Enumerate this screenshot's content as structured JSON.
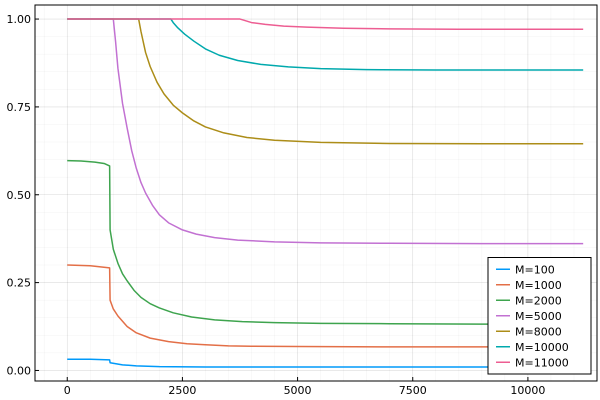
{
  "chart_data": {
    "type": "line",
    "title": "",
    "xlabel": "",
    "ylabel": "",
    "xlim": [
      -700,
      11500
    ],
    "ylim": [
      -0.03,
      1.04
    ],
    "grid": true,
    "legend_position": "bottom-right",
    "x_ticks": [
      0,
      2500,
      5000,
      7500,
      10000
    ],
    "x_tick_labels": [
      "0",
      "2500",
      "5000",
      "7500",
      "10000"
    ],
    "y_ticks": [
      0,
      0.25,
      0.5,
      0.75,
      1.0
    ],
    "y_tick_labels": [
      "0.00",
      "0.25",
      "0.50",
      "0.75",
      "1.00"
    ],
    "series": [
      {
        "name": "M=100",
        "color": "#009AFA",
        "x": [
          0,
          500,
          920,
          930,
          1200,
          1500,
          2000,
          3000,
          5000,
          8000,
          11200
        ],
        "y": [
          0.032,
          0.032,
          0.03,
          0.022,
          0.016,
          0.013,
          0.011,
          0.01,
          0.01,
          0.01,
          0.01
        ]
      },
      {
        "name": "M=1000",
        "color": "#E36F47",
        "x": [
          0,
          500,
          920,
          930,
          1000,
          1100,
          1300,
          1500,
          1800,
          2200,
          2600,
          3000,
          3500,
          4000,
          5000,
          7000,
          11200
        ],
        "y": [
          0.3,
          0.298,
          0.292,
          0.2,
          0.175,
          0.155,
          0.125,
          0.107,
          0.092,
          0.082,
          0.076,
          0.073,
          0.07,
          0.069,
          0.068,
          0.067,
          0.067
        ]
      },
      {
        "name": "M=2000",
        "color": "#3EA44E",
        "x": [
          0,
          300,
          600,
          800,
          920,
          930,
          1000,
          1100,
          1200,
          1300,
          1450,
          1600,
          1800,
          2000,
          2300,
          2700,
          3200,
          3800,
          4500,
          5500,
          7000,
          9000,
          11200
        ],
        "y": [
          0.597,
          0.596,
          0.593,
          0.589,
          0.582,
          0.4,
          0.345,
          0.305,
          0.275,
          0.255,
          0.228,
          0.208,
          0.19,
          0.178,
          0.164,
          0.152,
          0.144,
          0.139,
          0.136,
          0.134,
          0.133,
          0.132,
          0.132
        ]
      },
      {
        "name": "M=5000",
        "color": "#C271D2",
        "x": [
          0,
          1000,
          1050,
          1100,
          1200,
          1300,
          1400,
          1500,
          1600,
          1700,
          1850,
          2000,
          2200,
          2500,
          2800,
          3200,
          3700,
          4500,
          5500,
          7000,
          9000,
          11200
        ],
        "y": [
          1.0,
          1.0,
          0.935,
          0.86,
          0.76,
          0.69,
          0.625,
          0.575,
          0.535,
          0.505,
          0.47,
          0.443,
          0.42,
          0.4,
          0.388,
          0.378,
          0.371,
          0.366,
          0.363,
          0.362,
          0.361,
          0.361
        ]
      },
      {
        "name": "M=8000",
        "color": "#AC8D18",
        "x": [
          0,
          1550,
          1600,
          1700,
          1800,
          1950,
          2100,
          2300,
          2500,
          2750,
          3000,
          3400,
          3900,
          4500,
          5500,
          7000,
          9000,
          11200
        ],
        "y": [
          1.0,
          1.0,
          0.965,
          0.905,
          0.865,
          0.82,
          0.787,
          0.755,
          0.733,
          0.71,
          0.693,
          0.676,
          0.663,
          0.655,
          0.649,
          0.646,
          0.645,
          0.645
        ]
      },
      {
        "name": "M=10000",
        "color": "#00A9AD",
        "x": [
          0,
          2250,
          2300,
          2400,
          2550,
          2750,
          3000,
          3300,
          3700,
          4200,
          4800,
          5500,
          6500,
          8000,
          10000,
          11200
        ],
        "y": [
          1.0,
          1.0,
          0.99,
          0.975,
          0.957,
          0.937,
          0.915,
          0.897,
          0.882,
          0.871,
          0.864,
          0.859,
          0.856,
          0.855,
          0.855,
          0.855
        ]
      },
      {
        "name": "M=11000",
        "color": "#ED5D92",
        "x": [
          0,
          3750,
          3850,
          4000,
          4300,
          4700,
          5200,
          6000,
          7000,
          8500,
          10000,
          11200
        ],
        "y": [
          1.0,
          1.0,
          0.996,
          0.99,
          0.985,
          0.98,
          0.977,
          0.974,
          0.972,
          0.971,
          0.971,
          0.971
        ]
      }
    ]
  }
}
